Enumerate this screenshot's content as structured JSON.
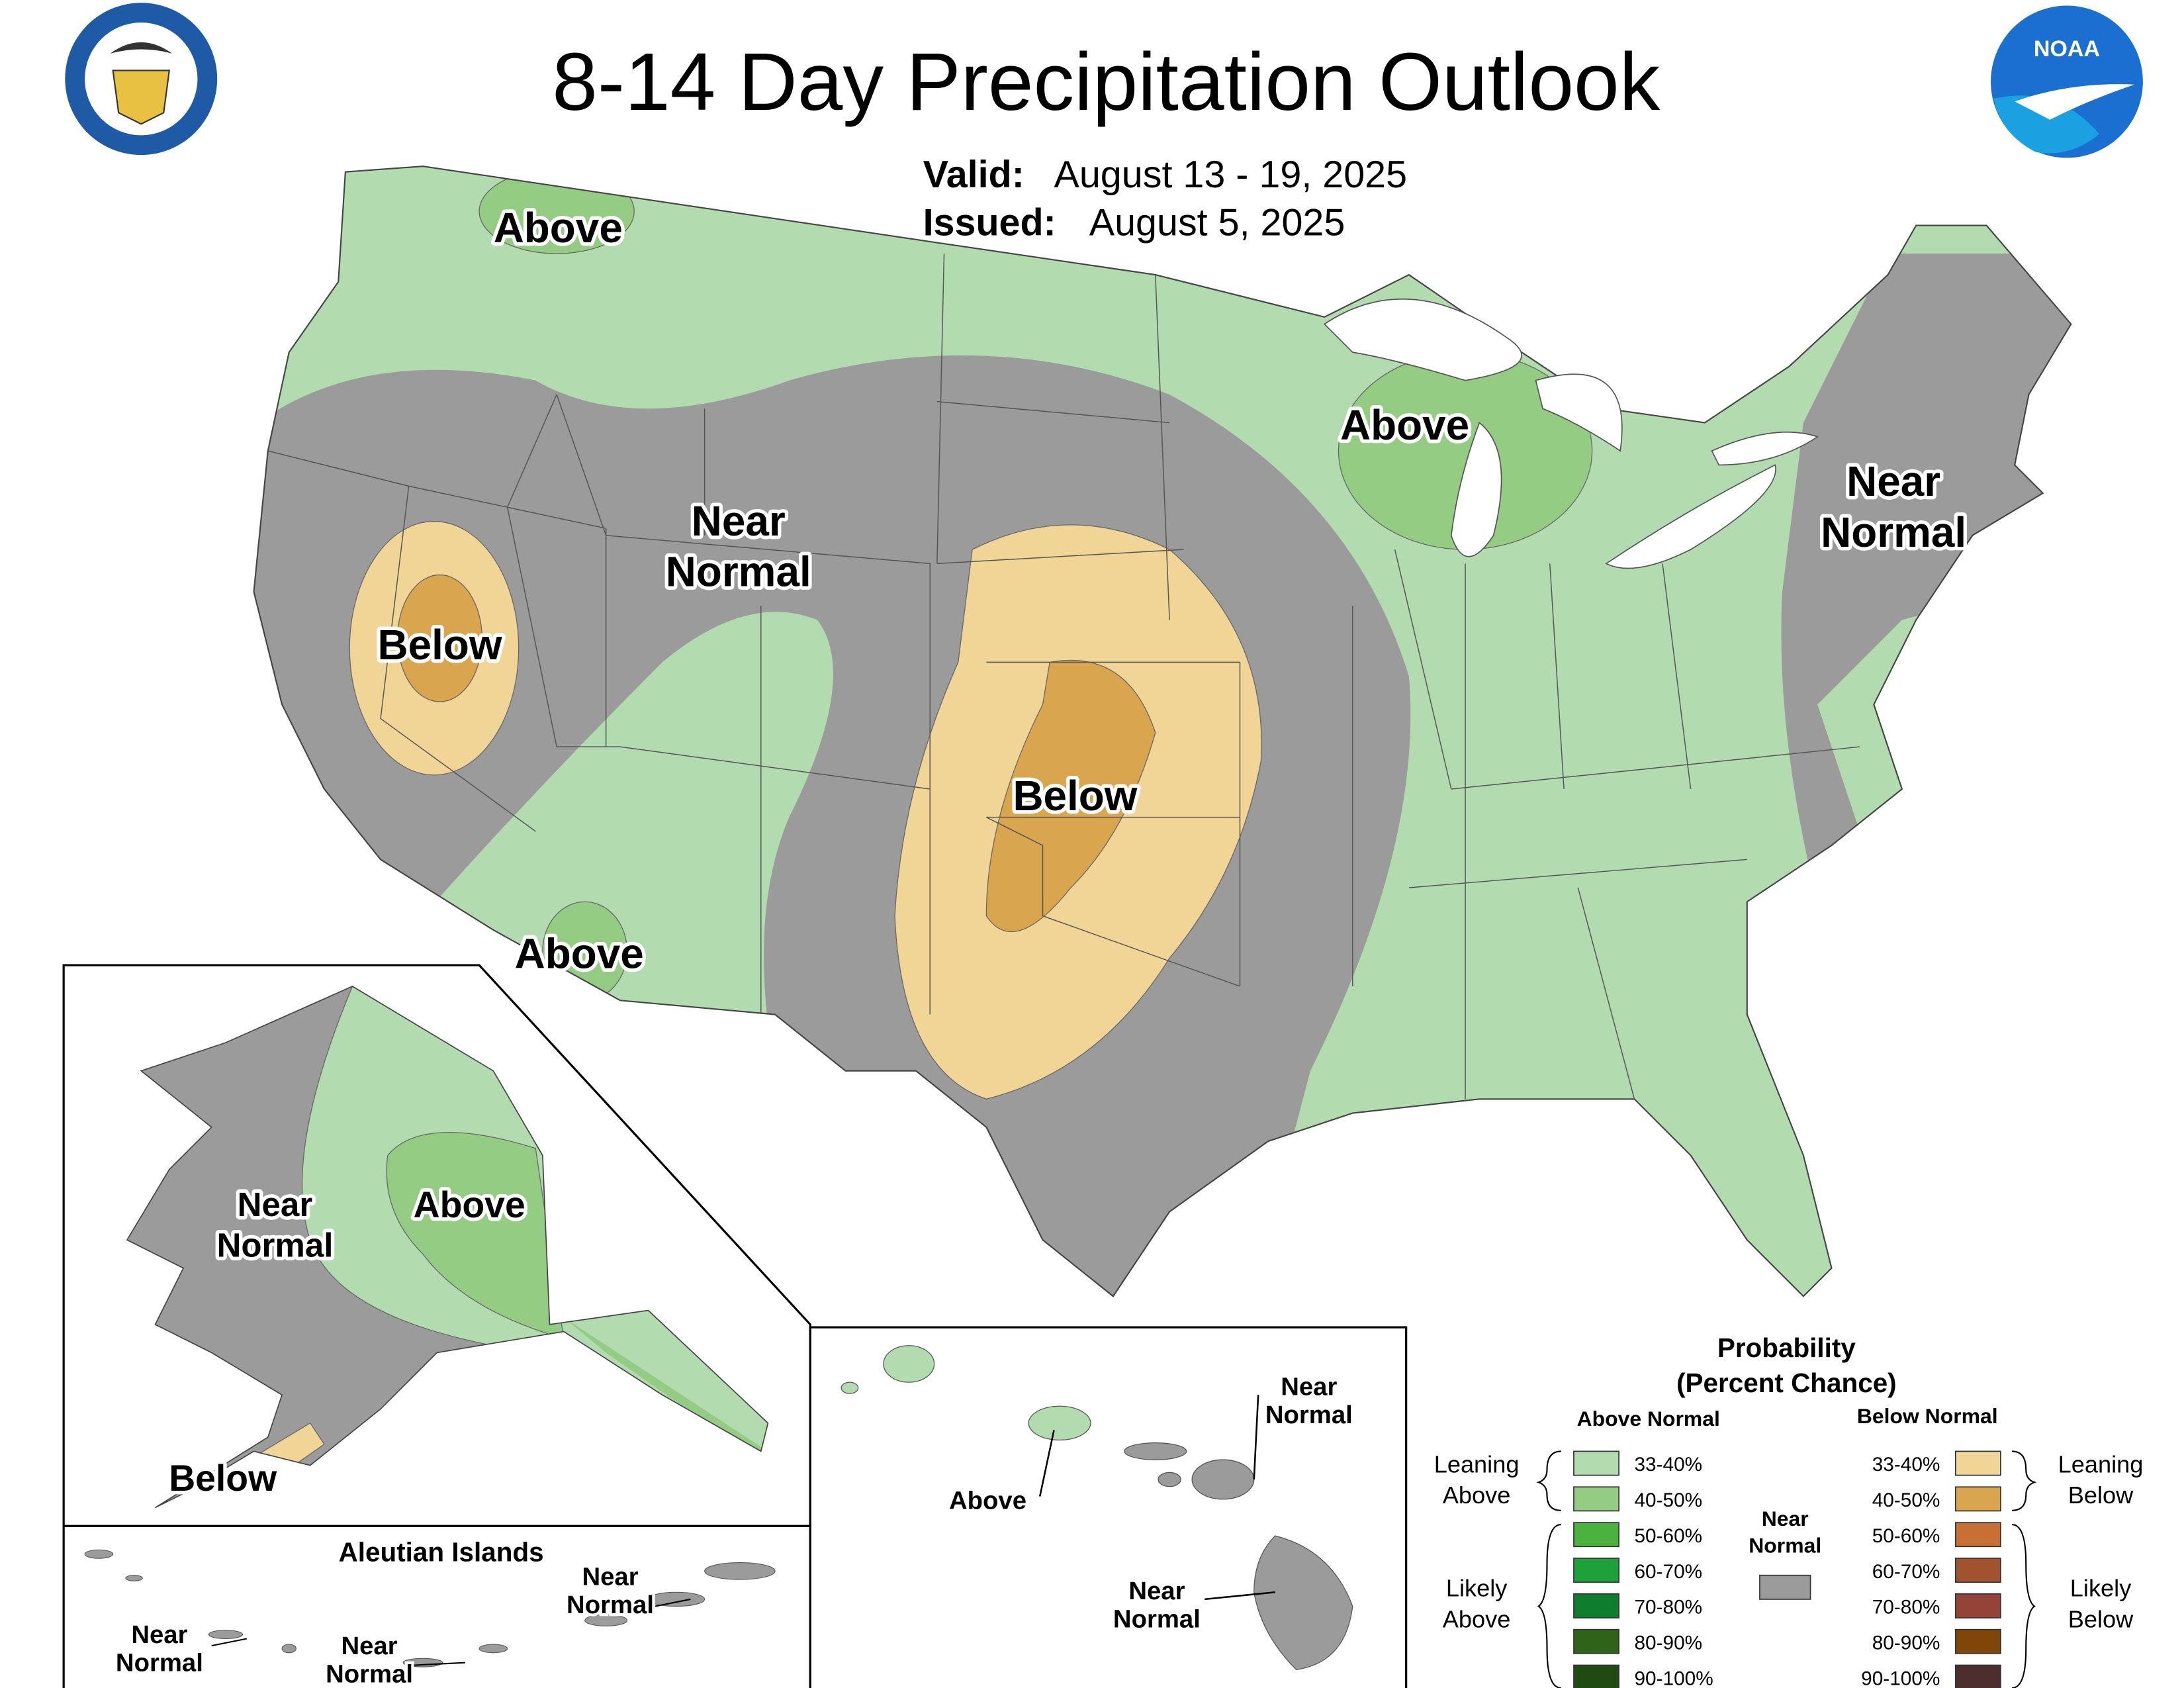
{
  "header": {
    "title": "8-14 Day Precipitation Outlook",
    "valid_label": "Valid:",
    "valid": "August 13 - 19, 2025",
    "issued_label": "Issued:",
    "issued": "August 5, 2025",
    "noaa_logo": "NOAA"
  },
  "conus_labels": [
    {
      "lines": [
        "Above"
      ]
    },
    {
      "lines": [
        "Near",
        "Normal"
      ]
    },
    {
      "lines": [
        "Below"
      ]
    },
    {
      "lines": [
        "Above"
      ]
    },
    {
      "lines": [
        "Above"
      ]
    },
    {
      "lines": [
        "Below"
      ]
    },
    {
      "lines": [
        "Near",
        "Normal"
      ]
    }
  ],
  "alaska_labels": [
    {
      "lines": [
        "Near",
        "Normal"
      ]
    },
    {
      "lines": [
        "Above"
      ]
    },
    {
      "lines": [
        "Below"
      ]
    }
  ],
  "aleutians": {
    "title": "Aleutian Islands",
    "labels": [
      {
        "lines": [
          "Near",
          "Normal"
        ]
      },
      {
        "lines": [
          "Near",
          "Normal"
        ]
      },
      {
        "lines": [
          "Near",
          "Normal"
        ]
      }
    ]
  },
  "hawaii_labels": [
    {
      "lines": [
        "Near",
        "Normal"
      ]
    },
    {
      "lines": [
        "Above"
      ]
    },
    {
      "lines": [
        "Near",
        "Normal"
      ]
    }
  ],
  "legend": {
    "title": "Probability",
    "subtitle": "(Percent Chance)",
    "above_header": "Above Normal",
    "below_header": "Below Normal",
    "above": [
      {
        "label": "33-40%",
        "color": "#b3dbb0"
      },
      {
        "label": "40-50%",
        "color": "#93cc82"
      },
      {
        "label": "50-60%",
        "color": "#4bb23f"
      },
      {
        "label": "60-70%",
        "color": "#1ea03a"
      },
      {
        "label": "70-80%",
        "color": "#0e7d2d"
      },
      {
        "label": "80-90%",
        "color": "#2e6319"
      },
      {
        "label": "90-100%",
        "color": "#1f4a12"
      }
    ],
    "below": [
      {
        "label": "33-40%",
        "color": "#f0d597"
      },
      {
        "label": "40-50%",
        "color": "#d9a54e"
      },
      {
        "label": "50-60%",
        "color": "#c76f35"
      },
      {
        "label": "60-70%",
        "color": "#a1522f"
      },
      {
        "label": "70-80%",
        "color": "#954238"
      },
      {
        "label": "80-90%",
        "color": "#7f4509"
      },
      {
        "label": "90-100%",
        "color": "#4c2e2e"
      }
    ],
    "near": {
      "lines": [
        "Near",
        "Normal"
      ],
      "color": "#9b9b9b"
    },
    "leaning_above": [
      "Leaning",
      "Above"
    ],
    "likely_above": [
      "Likely",
      "Above"
    ],
    "leaning_below": [
      "Leaning",
      "Below"
    ],
    "likely_below": [
      "Likely",
      "Below"
    ]
  }
}
